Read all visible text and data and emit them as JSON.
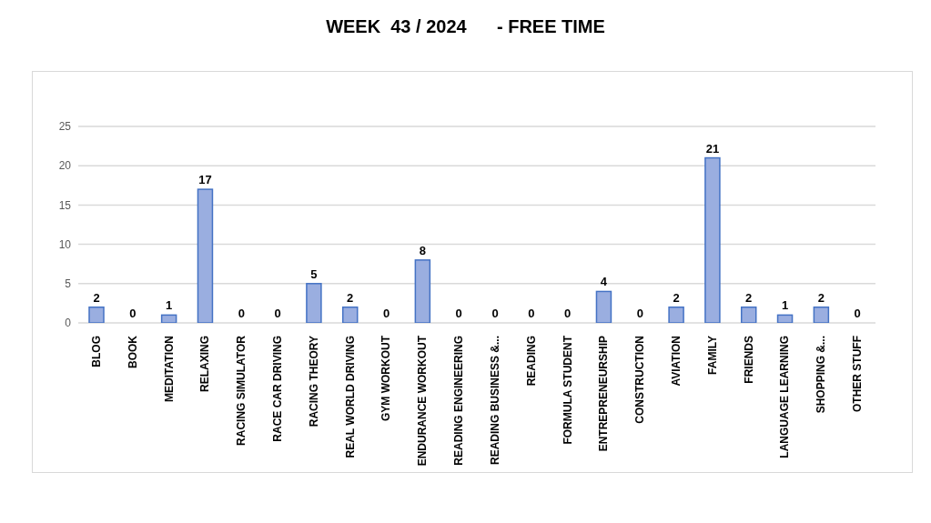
{
  "chart_data": {
    "type": "bar",
    "title": "WEEK  43 / 2024      - FREE TIME",
    "categories": [
      "BLOG",
      "BOOK",
      "MEDITATION",
      "RELAXING",
      "RACING SIMULATOR",
      "RACE CAR DRIVING",
      "RACING THEORY",
      "REAL WORLD DRIVING",
      "GYM WORKOUT",
      "ENDURANCE WORKOUT",
      "READING ENGINEERING",
      "READING BUSINESS &...",
      "READING",
      "FORMULA STUDENT",
      "ENTREPRENEURSHIP",
      "CONSTRUCTION",
      "AVIATION",
      "FAMILY",
      "FRIENDS",
      "LANGUAGE LEARNING",
      "SHOPPING &...",
      "OTHER STUFF"
    ],
    "values": [
      2,
      0,
      1,
      17,
      0,
      0,
      5,
      2,
      0,
      8,
      0,
      0,
      0,
      0,
      4,
      0,
      2,
      21,
      2,
      1,
      2,
      0
    ],
    "color": "#9aaee0",
    "ylim": [
      0,
      25
    ],
    "yticks": [
      0,
      5,
      10,
      15,
      20,
      25
    ],
    "grid": "y",
    "data_labels": true
  }
}
